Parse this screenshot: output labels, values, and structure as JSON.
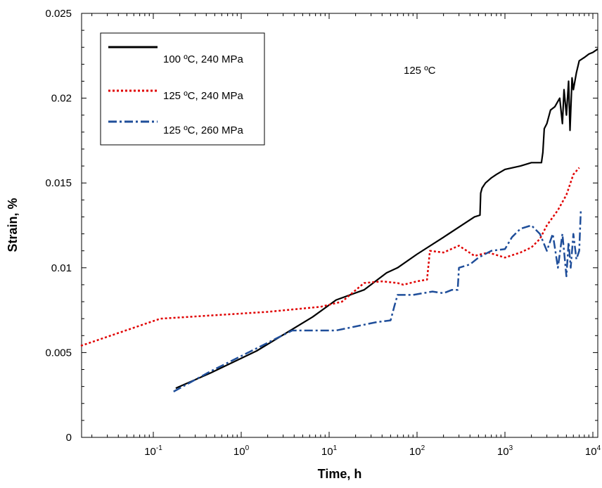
{
  "chart_data": {
    "type": "line",
    "title": "",
    "annotation": "125 ºC",
    "xlabel": "Time, h",
    "ylabel": "Strain, %",
    "xscale": "log",
    "xlim": [
      0.015,
      12000
    ],
    "ylim": [
      0,
      0.025
    ],
    "xticks": [
      {
        "value": 0.1,
        "base": "10",
        "exp": "-1"
      },
      {
        "value": 1,
        "base": "10",
        "exp": "0"
      },
      {
        "value": 10,
        "base": "10",
        "exp": "1"
      },
      {
        "value": 100,
        "base": "10",
        "exp": "2"
      },
      {
        "value": 1000,
        "base": "10",
        "exp": "3"
      },
      {
        "value": 10000,
        "base": "10",
        "exp": "4"
      }
    ],
    "yticks": [
      {
        "value": 0,
        "label": "0"
      },
      {
        "value": 0.005,
        "label": "0.005"
      },
      {
        "value": 0.01,
        "label": "0.01"
      },
      {
        "value": 0.015,
        "label": "0.015"
      },
      {
        "value": 0.02,
        "label": "0.02"
      },
      {
        "value": 0.025,
        "label": "0.025"
      }
    ],
    "grid": false,
    "legend_position": "top-left",
    "series": [
      {
        "name": "100 ºC, 240 MPa",
        "color": "#000000",
        "style": "solid",
        "x": [
          0.18,
          0.45,
          1.5,
          6.5,
          12,
          25,
          45,
          60,
          100,
          200,
          300,
          450,
          520,
          530,
          550,
          600,
          700,
          800,
          1000,
          1500,
          2000,
          2600,
          2700,
          2800,
          3000,
          3300,
          3700,
          4200,
          4500,
          4700,
          5000,
          5300,
          5500,
          5800,
          6000,
          6500,
          7000,
          8000,
          9000,
          10000,
          12000
        ],
        "y": [
          0.0029,
          0.0038,
          0.0051,
          0.0071,
          0.0081,
          0.0087,
          0.0097,
          0.01,
          0.0108,
          0.0118,
          0.0124,
          0.013,
          0.0131,
          0.0144,
          0.0147,
          0.015,
          0.0153,
          0.0155,
          0.0158,
          0.016,
          0.0162,
          0.0162,
          0.0168,
          0.0182,
          0.0185,
          0.0193,
          0.0195,
          0.02,
          0.0185,
          0.0205,
          0.019,
          0.021,
          0.0181,
          0.0212,
          0.0205,
          0.0215,
          0.0222,
          0.0224,
          0.0226,
          0.0227,
          0.0229
        ]
      },
      {
        "name": "125 ºC, 240 MPa",
        "color": "#e00000",
        "style": "dotted",
        "x": [
          0.015,
          0.12,
          0.5,
          2,
          8,
          14,
          25,
          40,
          60,
          70,
          100,
          130,
          140,
          200,
          300,
          450,
          650,
          1000,
          1500,
          2000,
          2500,
          3000,
          4000,
          5000,
          6000,
          7000
        ],
        "y": [
          0.0054,
          0.007,
          0.0072,
          0.0074,
          0.0077,
          0.008,
          0.0091,
          0.0092,
          0.0091,
          0.009,
          0.0092,
          0.0093,
          0.011,
          0.0109,
          0.0113,
          0.0107,
          0.0109,
          0.0106,
          0.0109,
          0.0112,
          0.0117,
          0.0125,
          0.0134,
          0.0143,
          0.0155,
          0.0159
        ]
      },
      {
        "name": "125 ºC, 260 MPa",
        "color": "#1f4e9a",
        "style": "dashdot",
        "x": [
          0.17,
          0.45,
          1.2,
          3.8,
          12,
          35,
          50,
          55,
          60,
          90,
          150,
          200,
          250,
          290,
          300,
          400,
          500,
          700,
          1000,
          1200,
          1500,
          2000,
          2500,
          3000,
          3500,
          4000,
          4500,
          5000,
          5300,
          5600,
          6000,
          6500,
          7000,
          7300
        ],
        "y": [
          0.0027,
          0.0039,
          0.005,
          0.0063,
          0.0063,
          0.0068,
          0.0069,
          0.0077,
          0.0084,
          0.0084,
          0.0086,
          0.0085,
          0.0087,
          0.0087,
          0.01,
          0.0102,
          0.0106,
          0.011,
          0.0111,
          0.0118,
          0.0123,
          0.0125,
          0.012,
          0.011,
          0.012,
          0.01,
          0.012,
          0.0095,
          0.0115,
          0.01,
          0.012,
          0.0105,
          0.011,
          0.0134
        ]
      }
    ]
  }
}
